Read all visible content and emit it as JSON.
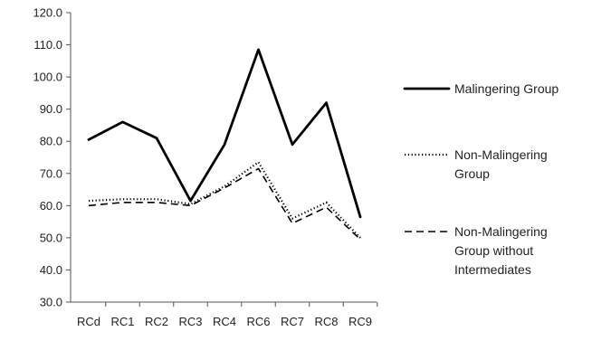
{
  "chart_data": {
    "type": "line",
    "categories": [
      "RCd",
      "RC1",
      "RC2",
      "RC3",
      "RC4",
      "RC6",
      "RC7",
      "RC8",
      "RC9"
    ],
    "series": [
      {
        "name": "Malingering Group",
        "style": "solid",
        "color": "#000000",
        "values": [
          80.5,
          86.0,
          81.0,
          61.5,
          79.0,
          108.5,
          79.0,
          92.0,
          56.5
        ]
      },
      {
        "name": "Non-Malingering Group",
        "style": "dotted",
        "color": "#000000",
        "values": [
          61.5,
          62.0,
          62.0,
          60.5,
          66.0,
          73.5,
          56.0,
          61.0,
          50.0
        ]
      },
      {
        "name": "Non-Malingering Group without Intermediates",
        "style": "dashed",
        "color": "#000000",
        "values": [
          60.0,
          61.0,
          61.0,
          60.0,
          65.5,
          71.5,
          54.5,
          59.5,
          49.5
        ]
      }
    ],
    "yticks": [
      "30.0",
      "40.0",
      "50.0",
      "60.0",
      "70.0",
      "80.0",
      "90.0",
      "100.0",
      "110.0",
      "120.0"
    ],
    "ylim": [
      30,
      120
    ],
    "legend_lines": [
      [
        "Malingering Group"
      ],
      [
        "Non-Malingering",
        "Group"
      ],
      [
        "Non-Malingering",
        "Group without",
        "Intermediates"
      ]
    ],
    "legend_position": "right",
    "grid": false
  }
}
